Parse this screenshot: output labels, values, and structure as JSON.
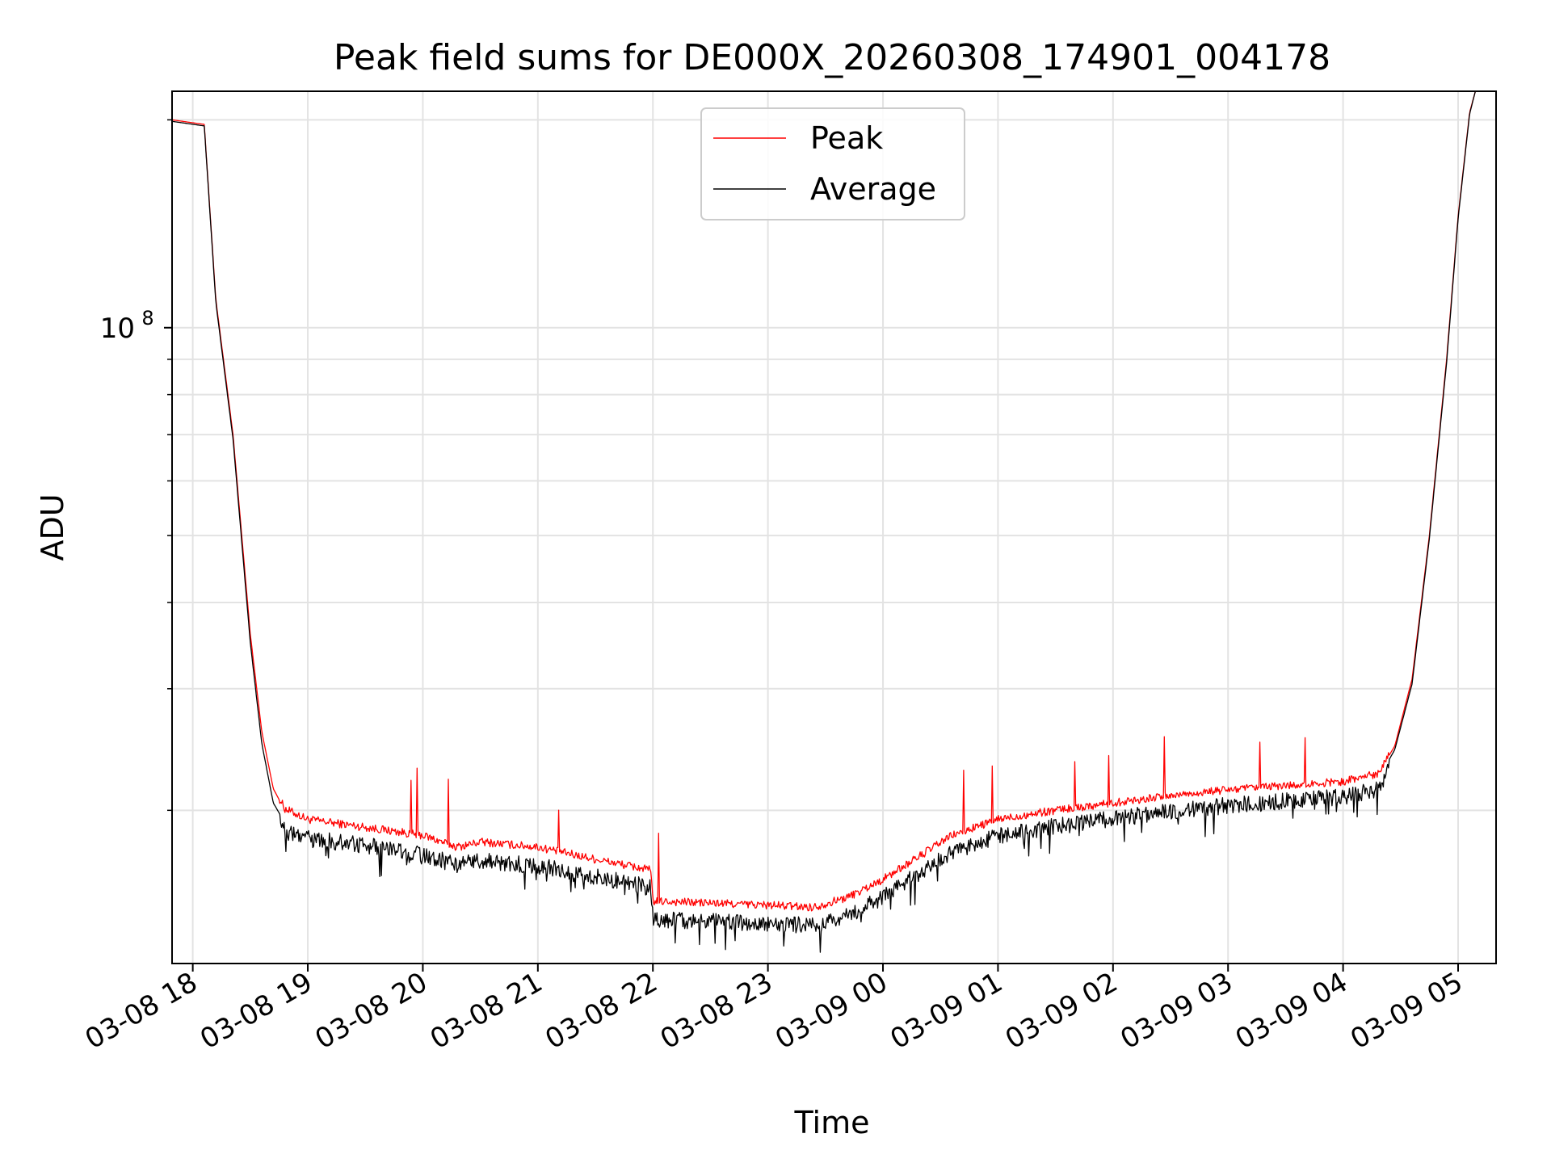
{
  "chart_data": {
    "type": "line",
    "title": "Peak field sums for DE000X_20260308_174901_004178",
    "xlabel": "Time",
    "ylabel": "ADU",
    "yscale": "log",
    "grid": true,
    "legend_position": "top-center",
    "x_unit": "hours since 2026-03-08 00:00",
    "xlim": [
      17.82,
      29.33
    ],
    "ylim": [
      12000000,
      220000000
    ],
    "x_ticks": [
      18,
      19,
      20,
      21,
      22,
      23,
      24,
      25,
      26,
      27,
      28,
      29
    ],
    "x_tick_labels": [
      "03-08 18",
      "03-08 19",
      "03-08 20",
      "03-08 21",
      "03-08 22",
      "03-08 23",
      "03-09 00",
      "03-09 01",
      "03-09 02",
      "03-09 03",
      "03-09 04",
      "03-09 05"
    ],
    "y_major_tick": {
      "value": 100000000,
      "base": "10",
      "exponent": "8"
    },
    "y_minor_ticks": [
      20000000,
      30000000,
      40000000,
      50000000,
      60000000,
      70000000,
      80000000,
      90000000,
      200000000
    ],
    "series": [
      {
        "name": "Peak",
        "color": "#ff0000",
        "x": [
          17.82,
          18.1,
          18.2,
          18.35,
          18.5,
          18.6,
          18.7,
          18.8,
          19.0,
          19.5,
          20.0,
          20.3,
          20.5,
          21.0,
          21.5,
          21.98,
          22.0,
          22.5,
          23.0,
          23.4,
          23.7,
          24.0,
          24.3,
          24.6,
          25.0,
          25.5,
          26.0,
          26.5,
          27.0,
          27.5,
          28.0,
          28.3,
          28.45,
          28.6,
          28.75,
          28.9,
          29.0,
          29.1,
          29.15
        ],
        "y": [
          200000000,
          197000000,
          110000000,
          70000000,
          36000000,
          26000000,
          21500000,
          20000000,
          19300000,
          18800000,
          18300000,
          17600000,
          17900000,
          17600000,
          16900000,
          16300000,
          14700000,
          14600000,
          14500000,
          14400000,
          14900000,
          15800000,
          17000000,
          18300000,
          19300000,
          19900000,
          20400000,
          20900000,
          21300000,
          21600000,
          21900000,
          22500000,
          24800000,
          31000000,
          50000000,
          90000000,
          145000000,
          205000000,
          220000000
        ]
      },
      {
        "name": "Average",
        "color": "#000000",
        "x": [
          17.82,
          18.1,
          18.2,
          18.35,
          18.5,
          18.6,
          18.7,
          18.8,
          19.0,
          19.5,
          20.0,
          20.3,
          20.5,
          21.0,
          21.5,
          21.98,
          22.0,
          22.5,
          23.0,
          23.4,
          23.7,
          24.0,
          24.3,
          24.6,
          25.0,
          25.5,
          26.0,
          26.5,
          27.0,
          27.5,
          28.0,
          28.3,
          28.45,
          28.6,
          28.75,
          28.9,
          29.0,
          29.1,
          29.15
        ],
        "y": [
          199000000,
          196000000,
          109000000,
          69000000,
          35000000,
          25000000,
          20500000,
          19200000,
          18700000,
          18300000,
          17800000,
          17100000,
          17400000,
          17100000,
          16500000,
          15900000,
          14300000,
          14200000,
          14100000,
          14000000,
          14500000,
          15400000,
          16600000,
          17900000,
          18900000,
          19500000,
          20000000,
          20500000,
          20900000,
          21200000,
          21500000,
          22100000,
          24500000,
          30500000,
          49500000,
          89000000,
          144000000,
          204000000,
          220000000
        ]
      }
    ]
  }
}
